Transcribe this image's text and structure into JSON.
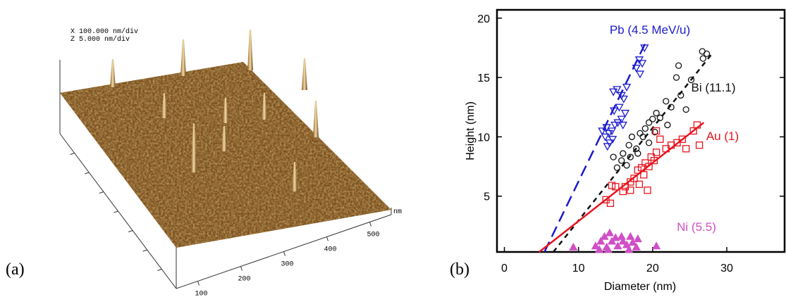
{
  "panel_a": {
    "label": "(a)",
    "header": [
      "X  100.000 nm/div",
      "Z  5.000 nm/div"
    ],
    "axis_ticks": [
      "100",
      "200",
      "300",
      "400",
      "500"
    ],
    "axis_unit": "nm"
  },
  "chart_data": {
    "type": "scatter",
    "panel_label": "(b)",
    "x_label": "Diameter (nm)",
    "y_label": "Height (nm)",
    "xlim": [
      -1,
      37.8
    ],
    "ylim": [
      0.3,
      20.7
    ],
    "xticks": [
      0,
      10,
      20,
      30
    ],
    "yticks": [
      5,
      10,
      15,
      20
    ],
    "grid": false,
    "series": [
      {
        "name": "Pb (4.5 MeV/u)",
        "color": "#1a1acc",
        "marker": "triangle-down",
        "filled": false,
        "x": [
          18.9,
          18.2,
          18.6,
          17.8,
          18.3,
          16.5,
          15.2,
          14.7,
          15.8,
          16.1,
          15.5,
          14.8,
          16.3,
          15.8,
          15.3,
          14.9,
          16.0,
          13.8,
          14.5,
          13.2,
          14.1,
          13.6,
          14.6,
          14.2,
          13.9
        ],
        "values": [
          17.5,
          16.5,
          16.2,
          15.8,
          15.3,
          14.2,
          14.0,
          13.8,
          13.5,
          13.2,
          12.5,
          12.2,
          12.0,
          11.5,
          11.2,
          11.0,
          11.0,
          10.8,
          10.5,
          10.5,
          10.3,
          10.0,
          9.8,
          9.5,
          9.2
        ]
      },
      {
        "name": "Bi (11.1)",
        "color": "#111111",
        "marker": "circle",
        "filled": false,
        "x": [
          26.7,
          27.3,
          26.8,
          23.5,
          23.2,
          25.2,
          23.8,
          21.8,
          22.5,
          24.5,
          20.5,
          21.0,
          20.0,
          19.5,
          22.0,
          19.0,
          18.3,
          17.2,
          18.7,
          20.3,
          16.8,
          17.8,
          16.0,
          17.0,
          15.8,
          16.5,
          15.2,
          14.7,
          18.0,
          19.5
        ],
        "values": [
          17.2,
          17.0,
          16.6,
          16.0,
          15.0,
          14.8,
          13.5,
          13.0,
          12.5,
          12.3,
          12.0,
          11.6,
          11.5,
          11.2,
          11.0,
          10.7,
          10.3,
          10.0,
          10.0,
          10.4,
          9.3,
          9.0,
          8.6,
          8.3,
          8.0,
          7.6,
          7.4,
          8.3,
          8.6,
          9.5
        ]
      },
      {
        "name": "Au (1)",
        "color": "#e8141e",
        "marker": "square",
        "filled": false,
        "x": [
          26.0,
          25.5,
          26.3,
          24.5,
          24.0,
          23.3,
          22.5,
          21.8,
          20.5,
          21.0,
          20.5,
          19.8,
          20.2,
          19.0,
          19.5,
          18.5,
          18.0,
          18.8,
          17.5,
          17.0,
          18.2,
          16.3,
          17.0,
          16.0,
          14.5,
          15.0,
          13.7,
          14.3,
          19.3
        ],
        "values": [
          11.0,
          10.5,
          9.3,
          9.0,
          9.8,
          9.5,
          9.3,
          9.0,
          10.5,
          9.8,
          8.7,
          8.3,
          8.0,
          7.8,
          7.5,
          7.4,
          7.2,
          6.8,
          6.5,
          6.2,
          6.0,
          5.8,
          5.5,
          5.4,
          5.9,
          5.8,
          4.7,
          4.4,
          5.5
        ]
      },
      {
        "name": "Ni (5.5)",
        "color": "#d04fc6",
        "marker": "triangle-up",
        "filled": true,
        "x": [
          9.3,
          12.3,
          13.0,
          13.5,
          13.8,
          14.2,
          14.5,
          15.0,
          15.3,
          15.8,
          16.0,
          16.5,
          17.0,
          17.3,
          17.8,
          18.0,
          14.0,
          20.5,
          16.8,
          12.8
        ],
        "values": [
          0.7,
          0.8,
          1.2,
          1.6,
          0.7,
          1.9,
          1.2,
          1.5,
          0.8,
          1.6,
          1.2,
          0.9,
          1.6,
          1.1,
          0.7,
          1.4,
          0.5,
          0.8,
          0.5,
          0.5
        ]
      }
    ],
    "fit_lines": [
      {
        "color": "#1a1acc",
        "dash": "long",
        "x": [
          5.4,
          19.1
        ],
        "values": [
          0.3,
          18.0
        ]
      },
      {
        "color": "#111111",
        "dash": "short",
        "x": [
          6.6,
          28.0
        ],
        "values": [
          0.3,
          17.0
        ]
      },
      {
        "color": "#e8141e",
        "dash": "solid",
        "x": [
          4.7,
          26.9
        ],
        "values": [
          0.3,
          11.2
        ]
      }
    ]
  }
}
